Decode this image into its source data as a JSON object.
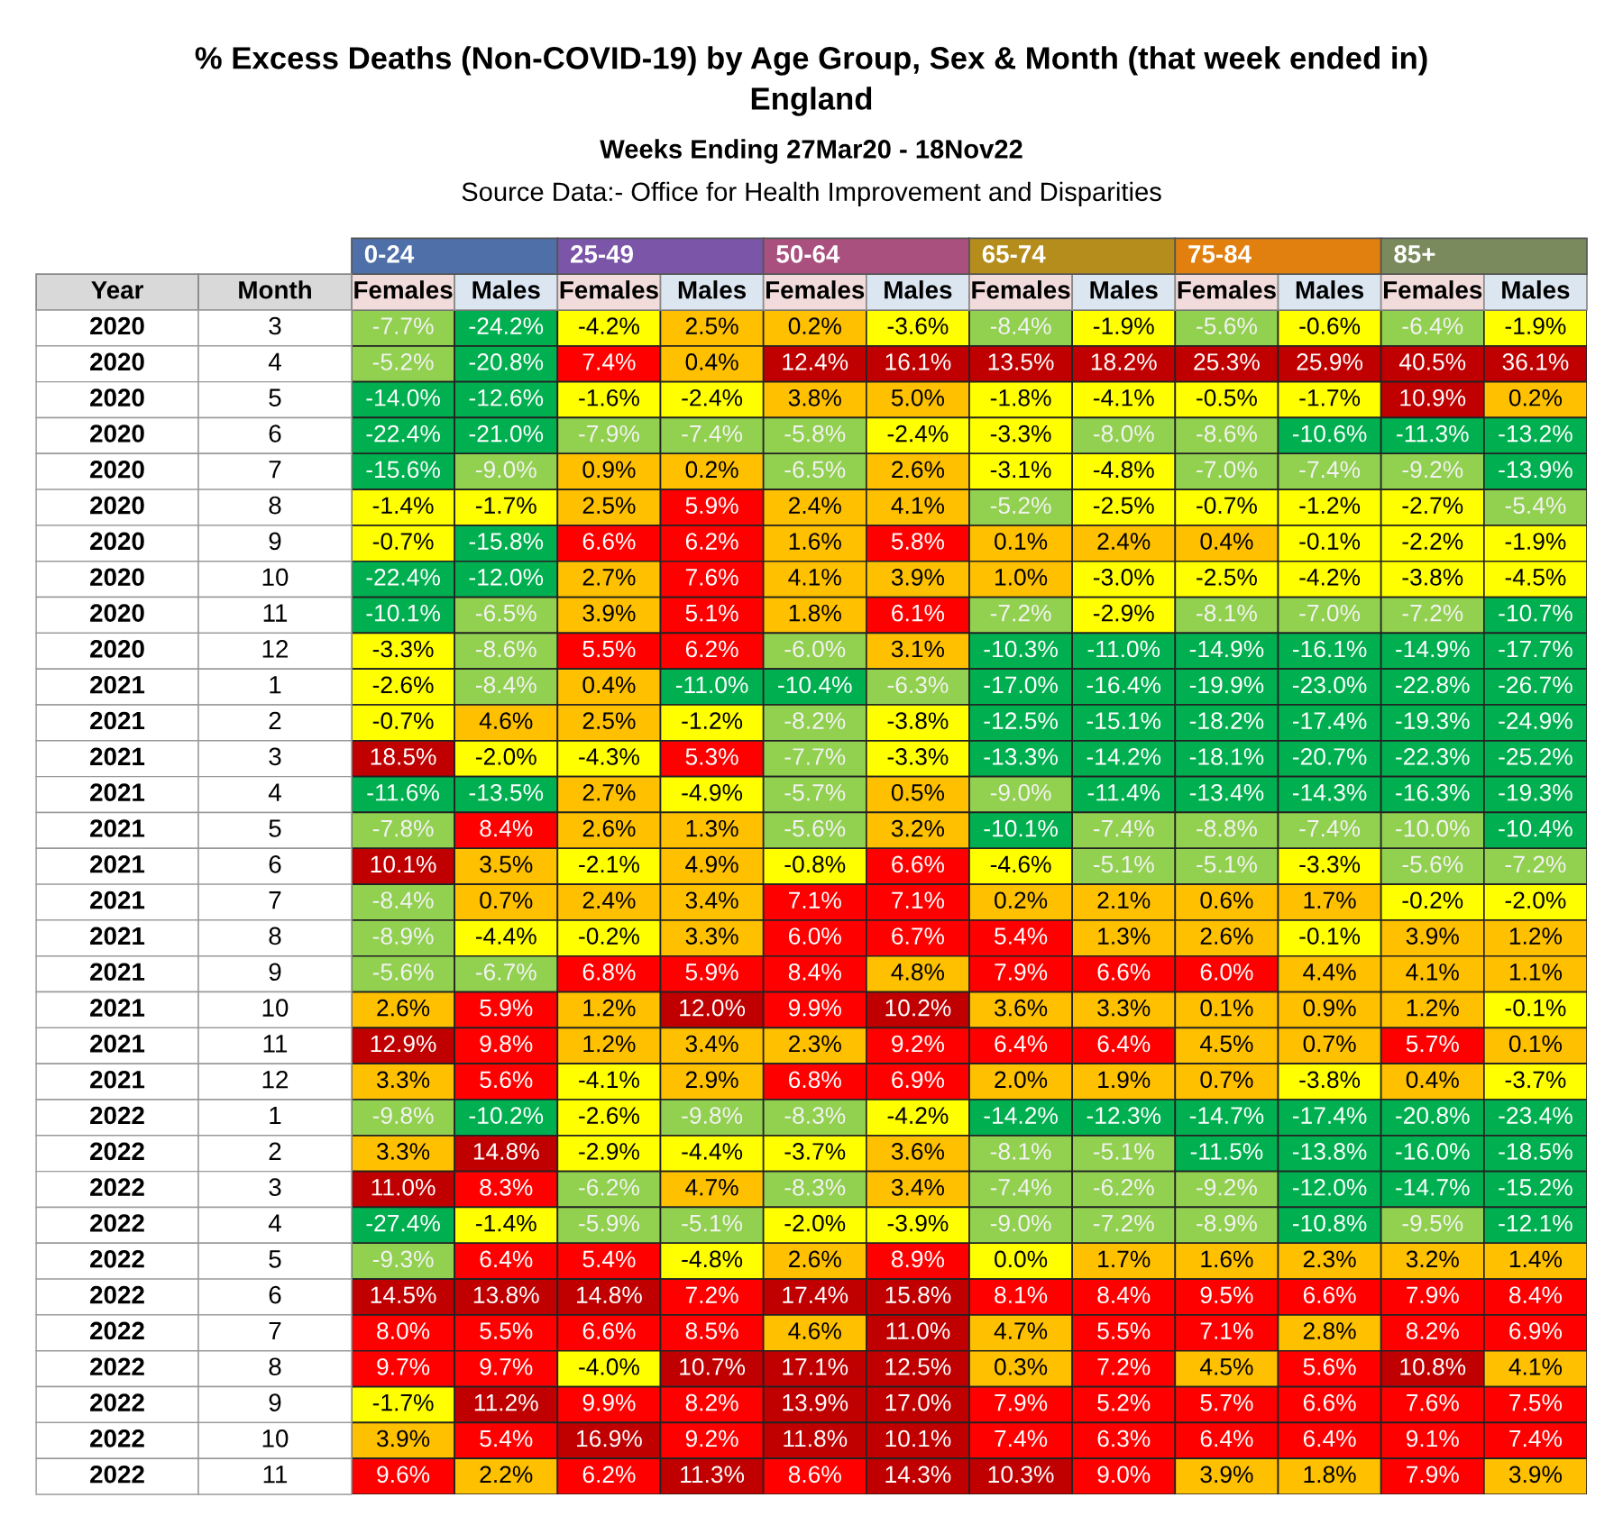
{
  "chart_data": {
    "type": "heatmap",
    "title": "% Excess Deaths (Non-COVID-19) by Age Group, Sex & Month (that week ended in)\nEngland",
    "subtitle": "Weeks Ending 27Mar20 - 18Nov22",
    "annotations": [
      "0-24",
      "25-49",
      "50-64",
      "65-74",
      "75-84",
      "85+",
      "Source Data:- Office for Health Improvement and Disparities"
    ],
    "ylabel": "Month",
    "y2label": "Year",
    "categories": [
      "Females",
      "Males",
      "Females",
      "Males",
      "Females",
      "Males",
      "Females",
      "Males",
      "Females",
      "Males",
      "Females",
      "Males"
    ],
    "y2_categories": [
      "2020",
      "2020",
      "2020",
      "2020",
      "2020",
      "2020",
      "2020",
      "2020",
      "2020",
      "2020",
      "2021",
      "2021",
      "2021",
      "2021",
      "2021",
      "2021",
      "2021",
      "2021",
      "2021",
      "2021",
      "2021",
      "2021",
      "2022",
      "2022",
      "2022",
      "2022",
      "2022",
      "2022",
      "2022",
      "2022",
      "2022",
      "2022",
      "2022"
    ],
    "y_categories": [
      "3",
      "4",
      "5",
      "6",
      "7",
      "8",
      "9",
      "10",
      "11",
      "12",
      "1",
      "2",
      "3",
      "4",
      "5",
      "6",
      "7",
      "8",
      "9",
      "10",
      "11",
      "12",
      "1",
      "2",
      "3",
      "4",
      "5",
      "6",
      "7",
      "8",
      "9",
      "10",
      "11"
    ],
    "cells": [
      [
        -7.7,
        -24.2,
        -4.2,
        2.5,
        0.2,
        -3.6,
        -8.4,
        -1.9,
        -5.6,
        -0.6,
        -6.4,
        -1.9
      ],
      [
        -5.2,
        -20.8,
        7.4,
        0.4,
        12.4,
        16.1,
        13.5,
        18.2,
        25.3,
        25.9,
        40.5,
        36.1
      ],
      [
        -14.0,
        -12.6,
        -1.6,
        -2.4,
        3.8,
        5.0,
        -1.8,
        -4.1,
        -0.5,
        -1.7,
        10.9,
        0.2
      ],
      [
        -22.4,
        -21.0,
        -7.9,
        -7.4,
        -5.8,
        -2.4,
        -3.3,
        -8.0,
        -8.6,
        -10.6,
        -11.3,
        -13.2
      ],
      [
        -15.6,
        -9.0,
        0.9,
        0.2,
        -6.5,
        2.6,
        -3.1,
        -4.8,
        -7.0,
        -7.4,
        -9.2,
        -13.9
      ],
      [
        -1.4,
        -1.7,
        2.5,
        5.9,
        2.4,
        4.1,
        -5.2,
        -2.5,
        -0.7,
        -1.2,
        -2.7,
        -5.4
      ],
      [
        -0.7,
        -15.8,
        6.6,
        6.2,
        1.6,
        5.8,
        0.1,
        2.4,
        0.4,
        -0.1,
        -2.2,
        -1.9
      ],
      [
        -22.4,
        -12.0,
        2.7,
        7.6,
        4.1,
        3.9,
        1.0,
        -3.0,
        -2.5,
        -4.2,
        -3.8,
        -4.5
      ],
      [
        -10.1,
        -6.5,
        3.9,
        5.1,
        1.8,
        6.1,
        -7.2,
        -2.9,
        -8.1,
        -7.0,
        -7.2,
        -10.7
      ],
      [
        -3.3,
        -8.6,
        5.5,
        6.2,
        -6.0,
        3.1,
        -10.3,
        -11.0,
        -14.9,
        -16.1,
        -14.9,
        -17.7
      ],
      [
        -2.6,
        -8.4,
        0.4,
        -11.0,
        -10.4,
        -6.3,
        -17.0,
        -16.4,
        -19.9,
        -23.0,
        -22.8,
        -26.7
      ],
      [
        -0.7,
        4.6,
        2.5,
        -1.2,
        -8.2,
        -3.8,
        -12.5,
        -15.1,
        -18.2,
        -17.4,
        -19.3,
        -24.9
      ],
      [
        18.5,
        -2.0,
        -4.3,
        5.3,
        -7.7,
        -3.3,
        -13.3,
        -14.2,
        -18.1,
        -20.7,
        -22.3,
        -25.2
      ],
      [
        -11.6,
        -13.5,
        2.7,
        -4.9,
        -5.7,
        0.5,
        -9.0,
        -11.4,
        -13.4,
        -14.3,
        -16.3,
        -19.3
      ],
      [
        -7.8,
        8.4,
        2.6,
        1.3,
        -5.6,
        3.2,
        -10.1,
        -7.4,
        -8.8,
        -7.4,
        -10.0,
        -10.4
      ],
      [
        10.1,
        3.5,
        -2.1,
        4.9,
        -0.8,
        6.6,
        -4.6,
        -5.1,
        -5.1,
        -3.3,
        -5.6,
        -7.2
      ],
      [
        -8.4,
        0.7,
        2.4,
        3.4,
        7.1,
        7.1,
        0.2,
        2.1,
        0.6,
        1.7,
        -0.2,
        -2.0
      ],
      [
        -8.9,
        -4.4,
        -0.2,
        3.3,
        6.0,
        6.7,
        5.4,
        1.3,
        2.6,
        -0.1,
        3.9,
        1.2
      ],
      [
        -5.6,
        -6.7,
        6.8,
        5.9,
        8.4,
        4.8,
        7.9,
        6.6,
        6.0,
        4.4,
        4.1,
        1.1
      ],
      [
        2.6,
        5.9,
        1.2,
        12.0,
        9.9,
        10.2,
        3.6,
        3.3,
        0.1,
        0.9,
        1.2,
        -0.1
      ],
      [
        12.9,
        9.8,
        1.2,
        3.4,
        2.3,
        9.2,
        6.4,
        6.4,
        4.5,
        0.7,
        5.7,
        0.1
      ],
      [
        3.3,
        5.6,
        -4.1,
        2.9,
        6.8,
        6.9,
        2.0,
        1.9,
        0.7,
        -3.8,
        0.4,
        -3.7
      ],
      [
        -9.8,
        -10.2,
        -2.6,
        -9.8,
        -8.3,
        -4.2,
        -14.2,
        -12.3,
        -14.7,
        -17.4,
        -20.8,
        -23.4
      ],
      [
        3.3,
        14.8,
        -2.9,
        -4.4,
        -3.7,
        3.6,
        -8.1,
        -5.1,
        -11.5,
        -13.8,
        -16.0,
        -18.5
      ],
      [
        11.0,
        8.3,
        -6.2,
        4.7,
        -8.3,
        3.4,
        -7.4,
        -6.2,
        -9.2,
        -12.0,
        -14.7,
        -15.2
      ],
      [
        -27.4,
        -1.4,
        -5.9,
        -5.1,
        -2.0,
        -3.9,
        -9.0,
        -7.2,
        -8.9,
        -10.8,
        -9.5,
        -12.1
      ],
      [
        -9.3,
        6.4,
        5.4,
        -4.8,
        2.6,
        8.9,
        0.0,
        1.7,
        1.6,
        2.3,
        3.2,
        1.4
      ],
      [
        14.5,
        13.8,
        14.8,
        7.2,
        17.4,
        15.8,
        8.1,
        8.4,
        9.5,
        6.6,
        7.9,
        8.4
      ],
      [
        8.0,
        5.5,
        6.6,
        8.5,
        4.6,
        11.0,
        4.7,
        5.5,
        7.1,
        2.8,
        8.2,
        6.9
      ],
      [
        9.7,
        9.7,
        -4.0,
        10.7,
        17.1,
        12.5,
        0.3,
        7.2,
        4.5,
        5.6,
        10.8,
        4.1
      ],
      [
        -1.7,
        11.2,
        9.9,
        8.2,
        13.9,
        17.0,
        7.9,
        5.2,
        5.7,
        6.6,
        7.6,
        7.5
      ],
      [
        3.9,
        5.4,
        16.9,
        9.2,
        11.8,
        10.1,
        7.4,
        6.3,
        6.4,
        6.4,
        9.1,
        7.4
      ],
      [
        9.6,
        2.2,
        6.2,
        11.3,
        8.6,
        14.3,
        10.3,
        9.0,
        3.9,
        1.8,
        7.9,
        3.9
      ]
    ],
    "cell_labels": [
      [
        "-7.7%",
        "-24.2%",
        "-4.2%",
        "2.5%",
        "0.2%",
        "-3.6%",
        "-8.4%",
        "-1.9%",
        "-5.6%",
        "-0.6%",
        "-6.4%",
        "-1.9%"
      ],
      [
        "-5.2%",
        "-20.8%",
        "7.4%",
        "0.4%",
        "12.4%",
        "16.1%",
        "13.5%",
        "18.2%",
        "25.3%",
        "25.9%",
        "40.5%",
        "36.1%"
      ],
      [
        "-14.0%",
        "-12.6%",
        "-1.6%",
        "-2.4%",
        "3.8%",
        "5.0%",
        "-1.8%",
        "-4.1%",
        "-0.5%",
        "-1.7%",
        "10.9%",
        "0.2%"
      ],
      [
        "-22.4%",
        "-21.0%",
        "-7.9%",
        "-7.4%",
        "-5.8%",
        "-2.4%",
        "-3.3%",
        "-8.0%",
        "-8.6%",
        "-10.6%",
        "-11.3%",
        "-13.2%"
      ],
      [
        "-15.6%",
        "-9.0%",
        "0.9%",
        "0.2%",
        "-6.5%",
        "2.6%",
        "-3.1%",
        "-4.8%",
        "-7.0%",
        "-7.4%",
        "-9.2%",
        "-13.9%"
      ],
      [
        "-1.4%",
        "-1.7%",
        "2.5%",
        "5.9%",
        "2.4%",
        "4.1%",
        "-5.2%",
        "-2.5%",
        "-0.7%",
        "-1.2%",
        "-2.7%",
        "-5.4%"
      ],
      [
        "-0.7%",
        "-15.8%",
        "6.6%",
        "6.2%",
        "1.6%",
        "5.8%",
        "0.1%",
        "2.4%",
        "0.4%",
        "-0.1%",
        "-2.2%",
        "-1.9%"
      ],
      [
        "-22.4%",
        "-12.0%",
        "2.7%",
        "7.6%",
        "4.1%",
        "3.9%",
        "1.0%",
        "-3.0%",
        "-2.5%",
        "-4.2%",
        "-3.8%",
        "-4.5%"
      ],
      [
        "-10.1%",
        "-6.5%",
        "3.9%",
        "5.1%",
        "1.8%",
        "6.1%",
        "-7.2%",
        "-2.9%",
        "-8.1%",
        "-7.0%",
        "-7.2%",
        "-10.7%"
      ],
      [
        "-3.3%",
        "-8.6%",
        "5.5%",
        "6.2%",
        "-6.0%",
        "3.1%",
        "-10.3%",
        "-11.0%",
        "-14.9%",
        "-16.1%",
        "-14.9%",
        "-17.7%"
      ],
      [
        "-2.6%",
        "-8.4%",
        "0.4%",
        "-11.0%",
        "-10.4%",
        "-6.3%",
        "-17.0%",
        "-16.4%",
        "-19.9%",
        "-23.0%",
        "-22.8%",
        "-26.7%"
      ],
      [
        "-0.7%",
        "4.6%",
        "2.5%",
        "-1.2%",
        "-8.2%",
        "-3.8%",
        "-12.5%",
        "-15.1%",
        "-18.2%",
        "-17.4%",
        "-19.3%",
        "-24.9%"
      ],
      [
        "18.5%",
        "-2.0%",
        "-4.3%",
        "5.3%",
        "-7.7%",
        "-3.3%",
        "-13.3%",
        "-14.2%",
        "-18.1%",
        "-20.7%",
        "-22.3%",
        "-25.2%"
      ],
      [
        "-11.6%",
        "-13.5%",
        "2.7%",
        "-4.9%",
        "-5.7%",
        "0.5%",
        "-9.0%",
        "-11.4%",
        "-13.4%",
        "-14.3%",
        "-16.3%",
        "-19.3%"
      ],
      [
        "-7.8%",
        "8.4%",
        "2.6%",
        "1.3%",
        "-5.6%",
        "3.2%",
        "-10.1%",
        "-7.4%",
        "-8.8%",
        "-7.4%",
        "-10.0%",
        "-10.4%"
      ],
      [
        "10.1%",
        "3.5%",
        "-2.1%",
        "4.9%",
        "-0.8%",
        "6.6%",
        "-4.6%",
        "-5.1%",
        "-5.1%",
        "-3.3%",
        "-5.6%",
        "-7.2%"
      ],
      [
        "-8.4%",
        "0.7%",
        "2.4%",
        "3.4%",
        "7.1%",
        "7.1%",
        "0.2%",
        "2.1%",
        "0.6%",
        "1.7%",
        "-0.2%",
        "-2.0%"
      ],
      [
        "-8.9%",
        "-4.4%",
        "-0.2%",
        "3.3%",
        "6.0%",
        "6.7%",
        "5.4%",
        "1.3%",
        "2.6%",
        "-0.1%",
        "3.9%",
        "1.2%"
      ],
      [
        "-5.6%",
        "-6.7%",
        "6.8%",
        "5.9%",
        "8.4%",
        "4.8%",
        "7.9%",
        "6.6%",
        "6.0%",
        "4.4%",
        "4.1%",
        "1.1%"
      ],
      [
        "2.6%",
        "5.9%",
        "1.2%",
        "12.0%",
        "9.9%",
        "10.2%",
        "3.6%",
        "3.3%",
        "0.1%",
        "0.9%",
        "1.2%",
        "-0.1%"
      ],
      [
        "12.9%",
        "9.8%",
        "1.2%",
        "3.4%",
        "2.3%",
        "9.2%",
        "6.4%",
        "6.4%",
        "4.5%",
        "0.7%",
        "5.7%",
        "0.1%"
      ],
      [
        "3.3%",
        "5.6%",
        "-4.1%",
        "2.9%",
        "6.8%",
        "6.9%",
        "2.0%",
        "1.9%",
        "0.7%",
        "-3.8%",
        "0.4%",
        "-3.7%"
      ],
      [
        "-9.8%",
        "-10.2%",
        "-2.6%",
        "-9.8%",
        "-8.3%",
        "-4.2%",
        "-14.2%",
        "-12.3%",
        "-14.7%",
        "-17.4%",
        "-20.8%",
        "-23.4%"
      ],
      [
        "3.3%",
        "14.8%",
        "-2.9%",
        "-4.4%",
        "-3.7%",
        "3.6%",
        "-8.1%",
        "-5.1%",
        "-11.5%",
        "-13.8%",
        "-16.0%",
        "-18.5%"
      ],
      [
        "11.0%",
        "8.3%",
        "-6.2%",
        "4.7%",
        "-8.3%",
        "3.4%",
        "-7.4%",
        "-6.2%",
        "-9.2%",
        "-12.0%",
        "-14.7%",
        "-15.2%"
      ],
      [
        "-27.4%",
        "-1.4%",
        "-5.9%",
        "-5.1%",
        "-2.0%",
        "-3.9%",
        "-9.0%",
        "-7.2%",
        "-8.9%",
        "-10.8%",
        "-9.5%",
        "-12.1%"
      ],
      [
        "-9.3%",
        "6.4%",
        "5.4%",
        "-4.8%",
        "2.6%",
        "8.9%",
        "0.0%",
        "1.7%",
        "1.6%",
        "2.3%",
        "3.2%",
        "1.4%"
      ],
      [
        "14.5%",
        "13.8%",
        "14.8%",
        "7.2%",
        "17.4%",
        "15.8%",
        "8.1%",
        "8.4%",
        "9.5%",
        "6.6%",
        "7.9%",
        "8.4%"
      ],
      [
        "8.0%",
        "5.5%",
        "6.6%",
        "8.5%",
        "4.6%",
        "11.0%",
        "4.7%",
        "5.5%",
        "7.1%",
        "2.8%",
        "8.2%",
        "6.9%"
      ],
      [
        "9.7%",
        "9.7%",
        "-4.0%",
        "10.7%",
        "17.1%",
        "12.5%",
        "0.3%",
        "7.2%",
        "4.5%",
        "5.6%",
        "10.8%",
        "4.1%"
      ],
      [
        "-1.7%",
        "11.2%",
        "9.9%",
        "8.2%",
        "13.9%",
        "17.0%",
        "7.9%",
        "5.2%",
        "5.7%",
        "6.6%",
        "7.6%",
        "7.5%"
      ],
      [
        "3.9%",
        "5.4%",
        "16.9%",
        "9.2%",
        "11.8%",
        "10.1%",
        "7.4%",
        "6.3%",
        "6.4%",
        "6.4%",
        "9.1%",
        "7.4%"
      ],
      [
        "9.6%",
        "2.2%",
        "6.2%",
        "11.3%",
        "8.6%",
        "14.3%",
        "10.3%",
        "9.0%",
        "3.9%",
        "1.8%",
        "7.9%",
        "3.9%"
      ]
    ]
  }
}
